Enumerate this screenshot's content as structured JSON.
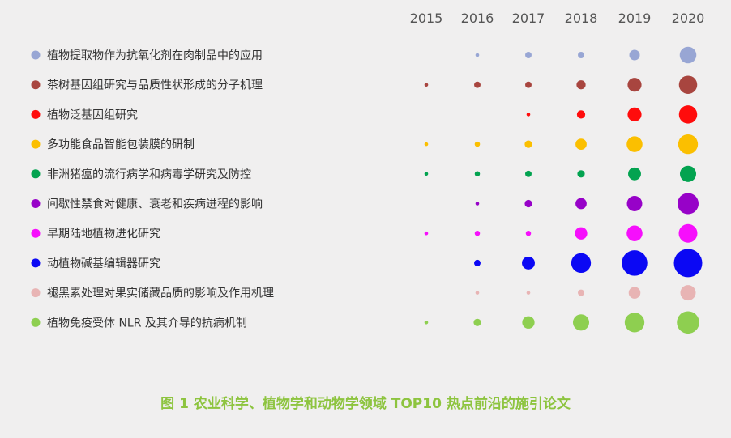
{
  "caption": "图 1 农业科学、植物学和动物学领域 TOP10 热点前沿的施引论文",
  "chart_data": {
    "type": "scatter",
    "subtype": "bubble-matrix",
    "x": [
      "2015",
      "2016",
      "2017",
      "2018",
      "2019",
      "2020"
    ],
    "legend_placement": "left",
    "grid": false,
    "series": [
      {
        "name": "植物提取物作为抗氧化剂在肉制品中的应用",
        "color": "#98a6d4",
        "values": [
          0,
          1,
          3,
          3,
          8,
          20
        ]
      },
      {
        "name": "茶树基因组研究与品质性状形成的分子机理",
        "color": "#a8453f",
        "values": [
          1,
          3,
          3,
          6,
          14,
          24
        ]
      },
      {
        "name": "植物泛基因组研究",
        "color": "#ff0c0c",
        "values": [
          0,
          0,
          1,
          5,
          14,
          24
        ]
      },
      {
        "name": "多功能食品智能包装膜的研制",
        "color": "#fbbf00",
        "values": [
          1,
          2,
          4,
          9,
          18,
          28
        ]
      },
      {
        "name": "非洲猪瘟的流行病学和病毒学研究及防控",
        "color": "#03a350",
        "values": [
          1,
          2,
          3,
          4,
          12,
          19
        ]
      },
      {
        "name": "间歇性禁食对健康、衰老和疾病进程的影响",
        "color": "#9702c8",
        "values": [
          0,
          1,
          4,
          9,
          17,
          32
        ]
      },
      {
        "name": "早期陆地植物进化研究",
        "color": "#f60ffc",
        "values": [
          1,
          2,
          2,
          11,
          18,
          25
        ]
      },
      {
        "name": "动植物碱基编辑器研究",
        "color": "#0b08f4",
        "values": [
          0,
          3,
          12,
          28,
          47,
          58
        ]
      },
      {
        "name": "褪黑素处理对果实储藏品质的影响及作用机理",
        "color": "#e8b4b4",
        "values": [
          0,
          1,
          1,
          3,
          10,
          17
        ]
      },
      {
        "name": "植物免疫受体 NLR 及其介导的抗病机制",
        "color": "#8ecf50",
        "values": [
          1,
          4,
          11,
          19,
          28,
          36
        ]
      }
    ]
  }
}
